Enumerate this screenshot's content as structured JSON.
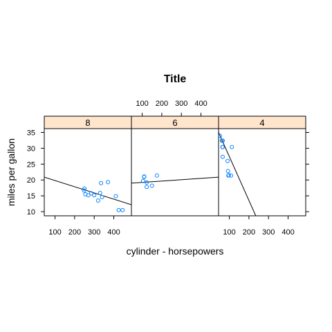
{
  "chart_data": {
    "type": "scatter",
    "title": "Title",
    "xlabel": "cylinder - horsepowers",
    "ylabel": "miles per gallon",
    "xlim": [
      45,
      490
    ],
    "ylim": [
      8.7,
      36.2
    ],
    "x_ticks": [
      100,
      200,
      300,
      400
    ],
    "y_ticks": [
      10,
      15,
      20,
      25,
      30,
      35
    ],
    "point_color": "#0080ff",
    "line_color": "#000000",
    "strip_color": "#ffe5cc",
    "panels": [
      {
        "label": "8",
        "points": [
          {
            "x": 250,
            "y": 17.3
          },
          {
            "x": 248,
            "y": 16.7
          },
          {
            "x": 255,
            "y": 15.5
          },
          {
            "x": 270,
            "y": 15.2
          },
          {
            "x": 285,
            "y": 15.8
          },
          {
            "x": 300,
            "y": 15.2
          },
          {
            "x": 330,
            "y": 15.9
          },
          {
            "x": 340,
            "y": 14.6
          },
          {
            "x": 320,
            "y": 13.5
          },
          {
            "x": 335,
            "y": 19.0
          },
          {
            "x": 370,
            "y": 19.3
          },
          {
            "x": 410,
            "y": 14.9
          },
          {
            "x": 425,
            "y": 10.5
          },
          {
            "x": 445,
            "y": 10.5
          }
        ],
        "fit": {
          "x": [
            45,
            490
          ],
          "y": [
            20.9,
            12.2
          ]
        }
      },
      {
        "label": "6",
        "points": [
          {
            "x": 105,
            "y": 19.7
          },
          {
            "x": 110,
            "y": 21.0
          },
          {
            "x": 110,
            "y": 21.1
          },
          {
            "x": 123,
            "y": 19.2
          },
          {
            "x": 123,
            "y": 17.8
          },
          {
            "x": 150,
            "y": 18.2
          },
          {
            "x": 175,
            "y": 21.4
          }
        ],
        "fit": {
          "x": [
            45,
            490
          ],
          "y": [
            19.0,
            20.9
          ]
        }
      },
      {
        "label": "4",
        "points": [
          {
            "x": 52,
            "y": 33.9
          },
          {
            "x": 62,
            "y": 32.4
          },
          {
            "x": 65,
            "y": 30.4
          },
          {
            "x": 66,
            "y": 27.3
          },
          {
            "x": 66,
            "y": 32.4
          },
          {
            "x": 91,
            "y": 26.0
          },
          {
            "x": 93,
            "y": 22.8
          },
          {
            "x": 95,
            "y": 21.4
          },
          {
            "x": 97,
            "y": 21.5
          },
          {
            "x": 109,
            "y": 21.4
          },
          {
            "x": 113,
            "y": 30.4
          },
          {
            "x": 66,
            "y": 30.4
          }
        ],
        "fit": {
          "x": [
            45,
            235
          ],
          "y": [
            35.0,
            8.7
          ]
        }
      }
    ]
  }
}
